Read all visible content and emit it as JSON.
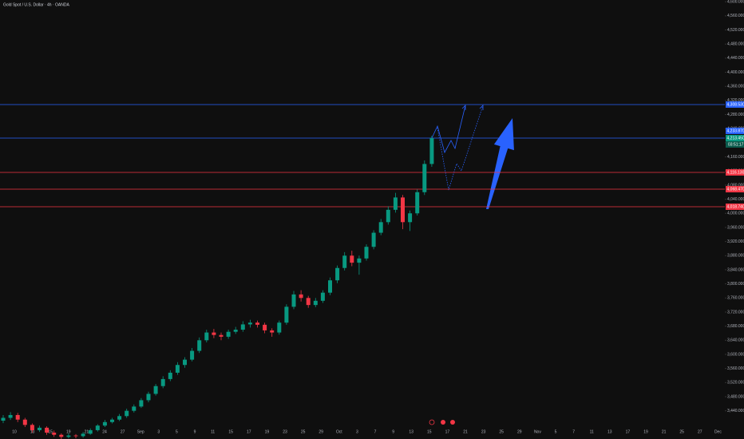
{
  "header": {
    "title": "Gold Spot / U.S. Dollar · 4h · OANDA"
  },
  "chart_data": {
    "type": "candlestick",
    "up_color": "#089981",
    "down_color": "#f23645",
    "ylim": [
      3360,
      4605
    ],
    "yticks": [
      {
        "value": 3440,
        "label": "3,440.000"
      },
      {
        "value": 3480,
        "label": "3,480.000"
      },
      {
        "value": 3520,
        "label": "3,520.000"
      },
      {
        "value": 3560,
        "label": "3,560.000"
      },
      {
        "value": 3600,
        "label": "3,600.000"
      },
      {
        "value": 3640,
        "label": "3,640.000"
      },
      {
        "value": 3680,
        "label": "3,680.000"
      },
      {
        "value": 3720,
        "label": "3,720.000"
      },
      {
        "value": 3760,
        "label": "3,760.000"
      },
      {
        "value": 3800,
        "label": "3,800.000"
      },
      {
        "value": 3840,
        "label": "3,840.000"
      },
      {
        "value": 3880,
        "label": "3,880.000"
      },
      {
        "value": 3920,
        "label": "3,920.000"
      },
      {
        "value": 3960,
        "label": "3,960.000"
      },
      {
        "value": 4000,
        "label": "4,000.000"
      },
      {
        "value": 4040,
        "label": "4,040.000"
      },
      {
        "value": 4080,
        "label": "4,080.000"
      },
      {
        "value": 4120,
        "label": "4,120.000"
      },
      {
        "value": 4160,
        "label": "4,160.000"
      },
      {
        "value": 4200,
        "label": "4,200.000"
      },
      {
        "value": 4240,
        "label": "4,240.000"
      },
      {
        "value": 4280,
        "label": "4,280.000"
      },
      {
        "value": 4320,
        "label": "4,320.000"
      },
      {
        "value": 4360,
        "label": "4,360.000"
      },
      {
        "value": 4400,
        "label": "4,400.000"
      },
      {
        "value": 4440,
        "label": "4,440.000"
      },
      {
        "value": 4480,
        "label": "4,480.000"
      },
      {
        "value": 4520,
        "label": "4,520.000"
      },
      {
        "value": 4560,
        "label": "4,560.000"
      },
      {
        "value": 4600,
        "label": "4,600.000"
      }
    ],
    "x_labels": [
      "10",
      "13",
      "15",
      "19",
      "21",
      "24",
      "27",
      "Sep",
      "3",
      "5",
      "9",
      "11",
      "15",
      "17",
      "19",
      "23",
      "25",
      "29",
      "Oct",
      "3",
      "7",
      "9",
      "13",
      "15",
      "17",
      "21",
      "23",
      "25",
      "29",
      "Nov",
      "5",
      "7",
      "11",
      "13",
      "17",
      "19",
      "21",
      "25",
      "27",
      "Dec"
    ],
    "open": [
      3412,
      3420,
      3428,
      3415,
      3400,
      3385,
      3392,
      3378,
      3372,
      3366,
      3370,
      3368,
      3375,
      3385,
      3398,
      3408,
      3415,
      3425,
      3440,
      3452,
      3470,
      3488,
      3510,
      3530,
      3548,
      3570,
      3585,
      3610,
      3640,
      3662,
      3655,
      3650,
      3664,
      3670,
      3685,
      3690,
      3684,
      3668,
      3662,
      3690,
      3735,
      3770,
      3760,
      3740,
      3752,
      3775,
      3810,
      3845,
      3880,
      3860,
      3872,
      3905,
      3945,
      3975,
      4010,
      4045,
      3975,
      4000,
      4060,
      4140
    ],
    "high": [
      3428,
      3436,
      3434,
      3420,
      3404,
      3398,
      3396,
      3384,
      3376,
      3376,
      3374,
      3380,
      3390,
      3402,
      3414,
      3420,
      3431,
      3446,
      3458,
      3476,
      3494,
      3516,
      3538,
      3555,
      3578,
      3592,
      3618,
      3648,
      3670,
      3672,
      3662,
      3670,
      3678,
      3694,
      3698,
      3696,
      3690,
      3674,
      3696,
      3742,
      3780,
      3782,
      3766,
      3760,
      3782,
      3818,
      3852,
      3890,
      3894,
      3880,
      3912,
      3952,
      3984,
      4020,
      4058,
      4052,
      4008,
      4068,
      4150,
      4220
    ],
    "low": [
      3405,
      3414,
      3408,
      3394,
      3378,
      3380,
      3372,
      3366,
      3360,
      3362,
      3362,
      3364,
      3372,
      3381,
      3394,
      3404,
      3411,
      3420,
      3435,
      3448,
      3464,
      3483,
      3504,
      3524,
      3542,
      3562,
      3580,
      3604,
      3634,
      3646,
      3640,
      3644,
      3658,
      3664,
      3676,
      3676,
      3660,
      3650,
      3656,
      3684,
      3728,
      3750,
      3732,
      3734,
      3746,
      3768,
      3802,
      3838,
      3850,
      3826,
      3866,
      3898,
      3938,
      3968,
      4002,
      3955,
      3950,
      3994,
      4052,
      4132
    ],
    "close": [
      3420,
      3428,
      3415,
      3400,
      3385,
      3392,
      3378,
      3372,
      3366,
      3370,
      3368,
      3375,
      3385,
      3398,
      3408,
      3415,
      3425,
      3440,
      3452,
      3470,
      3488,
      3510,
      3530,
      3548,
      3570,
      3585,
      3610,
      3640,
      3662,
      3655,
      3650,
      3664,
      3670,
      3685,
      3690,
      3684,
      3668,
      3662,
      3690,
      3735,
      3770,
      3760,
      3740,
      3752,
      3775,
      3810,
      3845,
      3880,
      3860,
      3872,
      3905,
      3945,
      3975,
      4010,
      4045,
      3975,
      4000,
      4060,
      4140,
      4213
    ],
    "levels": [
      {
        "value": 4308.53,
        "label": "4,308.530",
        "color": "#2962ff",
        "line": true
      },
      {
        "value": 4233.87,
        "label": "4,233.870",
        "color": "#2962ff",
        "line": false
      },
      {
        "value": 4213.45,
        "label": "4,213.450",
        "color": "#089981",
        "line": true,
        "line_color": "#2962ff"
      },
      {
        "value": 4116.13,
        "label": "4,116.130",
        "color": "#f23645",
        "line": true
      },
      {
        "value": 4068.47,
        "label": "4,068.470",
        "color": "#f23645",
        "line": true
      },
      {
        "value": 4018.74,
        "label": "4,018.740",
        "color": "#f23645",
        "line": true
      }
    ],
    "countdown": "03:51:17"
  }
}
